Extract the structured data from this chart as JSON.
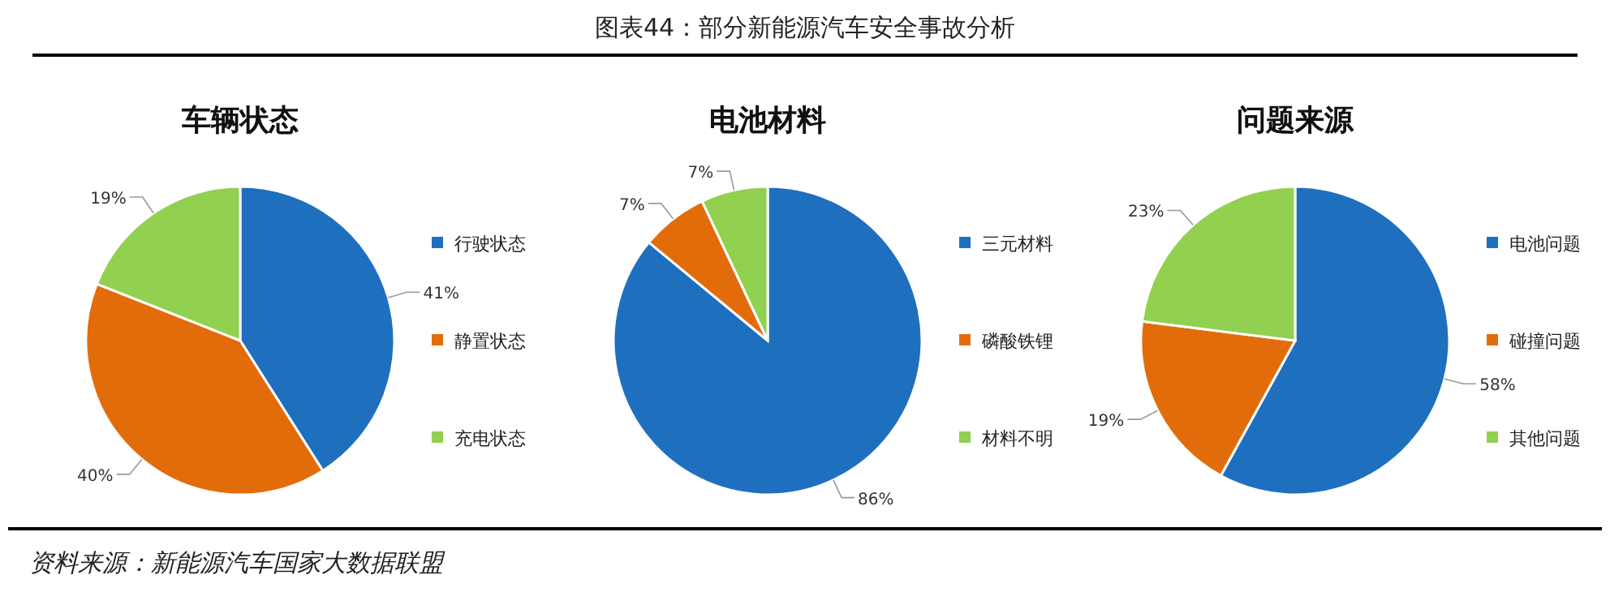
{
  "chart_data": [
    {
      "type": "pie",
      "title": "车辆状态",
      "categories": [
        "行驶状态",
        "静置状态",
        "充电状态"
      ],
      "values": [
        41,
        40,
        19
      ],
      "value_labels": [
        "41%",
        "40%",
        "19%"
      ],
      "colors": [
        "#1f6fbf",
        "#e36c0a",
        "#92d050"
      ],
      "legend": "right",
      "annotations": [
        "图表44：部分新能源汽车安全事故分析",
        "资料来源：新能源汽车国家大数据联盟"
      ]
    },
    {
      "type": "pie",
      "title": "电池材料",
      "categories": [
        "三元材料",
        "磷酸铁锂",
        "材料不明"
      ],
      "values": [
        86,
        7,
        7
      ],
      "value_labels": [
        "86%",
        "7%",
        "7%"
      ],
      "colors": [
        "#1f6fbf",
        "#e36c0a",
        "#92d050"
      ],
      "legend": "right"
    },
    {
      "type": "pie",
      "title": "问题来源",
      "categories": [
        "电池问题",
        "碰撞问题",
        "其他问题"
      ],
      "values": [
        58,
        19,
        23
      ],
      "value_labels": [
        "58%",
        "19%",
        "23%"
      ],
      "colors": [
        "#1f6fbf",
        "#e36c0a",
        "#92d050"
      ],
      "legend": "right"
    }
  ]
}
